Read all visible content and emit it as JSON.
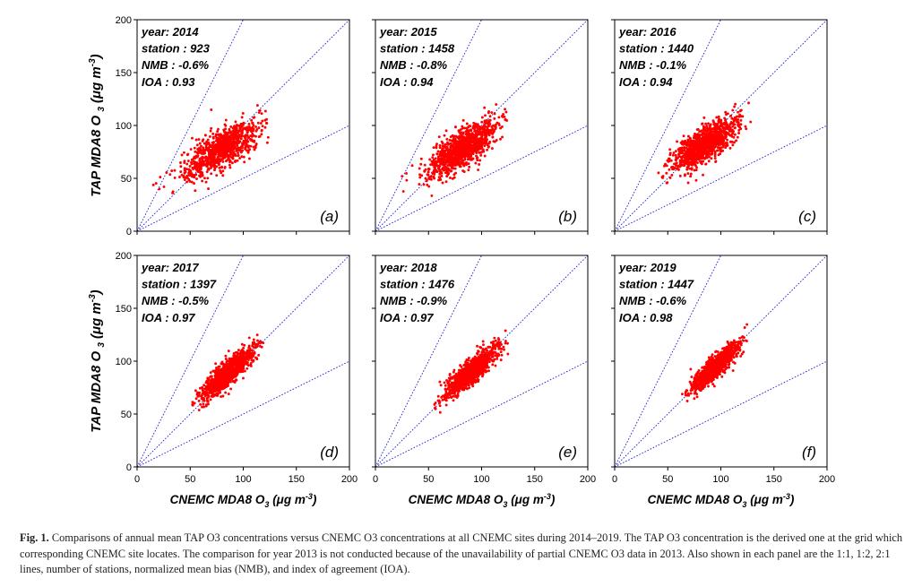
{
  "colors": {
    "points": "#ff0000",
    "ref_lines": "#1a1adc",
    "axes": "#000000"
  },
  "axis_text": {
    "ylabel_main": "TAP MDA8 O",
    "ylabel_sub": "3",
    "ylabel_unit": "(μg m",
    "ylabel_exp": "-3",
    "ylabel_close": ")",
    "xlabel_main": "CNEMC MDA8 O",
    "xlabel_sub": "3",
    "xlabel_unit": "(μg m",
    "xlabel_exp": "-3",
    "xlabel_close": ")"
  },
  "chart_data": [
    {
      "type": "scatter",
      "panel": "(a)",
      "year_text": "year: 2014",
      "station_text": "station : 923",
      "nmb_text": "NMB : -0.6%",
      "ioa_text": "IOA : 0.93",
      "xlim": [
        0,
        200
      ],
      "ylim": [
        0,
        200
      ],
      "xticks": [
        0,
        50,
        100,
        150,
        200
      ],
      "yticks": [
        0,
        50,
        100,
        150,
        200
      ],
      "reference_lines": [
        "1:1",
        "1:2",
        "2:1"
      ],
      "cloud": {
        "x_range": [
          15,
          125
        ],
        "center": [
          80,
          78
        ],
        "slope": 0.58,
        "spread": 9,
        "n": 923
      }
    },
    {
      "type": "scatter",
      "panel": "(b)",
      "year_text": "year: 2015",
      "station_text": "station : 1458",
      "nmb_text": "NMB : -0.8%",
      "ioa_text": "IOA : 0.94",
      "xlim": [
        0,
        200
      ],
      "ylim": [
        0,
        200
      ],
      "xticks": [
        0,
        50,
        100,
        150,
        200
      ],
      "yticks": [
        0,
        50,
        100,
        150,
        200
      ],
      "reference_lines": [
        "1:1",
        "1:2",
        "2:1"
      ],
      "cloud": {
        "x_range": [
          25,
          125
        ],
        "center": [
          82,
          78
        ],
        "slope": 0.6,
        "spread": 9,
        "n": 1458
      }
    },
    {
      "type": "scatter",
      "panel": "(c)",
      "year_text": "year: 2016",
      "station_text": "station : 1440",
      "nmb_text": "NMB : -0.1%",
      "ioa_text": "IOA : 0.94",
      "xlim": [
        0,
        200
      ],
      "ylim": [
        0,
        200
      ],
      "xticks": [
        0,
        50,
        100,
        150,
        200
      ],
      "yticks": [
        0,
        50,
        100,
        150,
        200
      ],
      "reference_lines": [
        "1:1",
        "1:2",
        "2:1"
      ],
      "cloud": {
        "x_range": [
          35,
          130
        ],
        "center": [
          85,
          82
        ],
        "slope": 0.62,
        "spread": 8,
        "n": 1440
      }
    },
    {
      "type": "scatter",
      "panel": "(d)",
      "year_text": "year: 2017",
      "station_text": "station : 1397",
      "nmb_text": "NMB : -0.5%",
      "ioa_text": "IOA : 0.97",
      "xlim": [
        0,
        200
      ],
      "ylim": [
        0,
        200
      ],
      "xticks": [
        0,
        50,
        100,
        150,
        200
      ],
      "yticks": [
        0,
        50,
        100,
        150,
        200
      ],
      "reference_lines": [
        "1:1",
        "1:2",
        "2:1"
      ],
      "cloud": {
        "x_range": [
          50,
          125
        ],
        "center": [
          85,
          88
        ],
        "slope": 0.85,
        "spread": 6,
        "n": 1397
      }
    },
    {
      "type": "scatter",
      "panel": "(e)",
      "year_text": "year: 2018",
      "station_text": "station : 1476",
      "nmb_text": "NMB : -0.9%",
      "ioa_text": "IOA : 0.97",
      "xlim": [
        0,
        200
      ],
      "ylim": [
        0,
        200
      ],
      "xticks": [
        0,
        50,
        100,
        150,
        200
      ],
      "yticks": [
        0,
        50,
        100,
        150,
        200
      ],
      "reference_lines": [
        "1:1",
        "1:2",
        "2:1"
      ],
      "cloud": {
        "x_range": [
          52,
          125
        ],
        "center": [
          90,
          90
        ],
        "slope": 0.85,
        "spread": 6,
        "n": 1476
      }
    },
    {
      "type": "scatter",
      "panel": "(f)",
      "year_text": "year: 2019",
      "station_text": "station : 1447",
      "nmb_text": "NMB : -0.6%",
      "ioa_text": "IOA : 0.98",
      "xlim": [
        0,
        200
      ],
      "ylim": [
        0,
        200
      ],
      "xticks": [
        0,
        50,
        100,
        150,
        200
      ],
      "yticks": [
        0,
        50,
        100,
        150,
        200
      ],
      "reference_lines": [
        "1:1",
        "1:2",
        "2:1"
      ],
      "cloud": {
        "x_range": [
          60,
          125
        ],
        "center": [
          95,
          95
        ],
        "slope": 0.88,
        "spread": 5,
        "n": 1447
      }
    }
  ],
  "caption": {
    "label": "Fig. 1.",
    "text": "Comparisons of annual mean TAP O3 concentrations versus CNEMC O3 concentrations at all CNEMC sites during 2014–2019. The TAP O3 concentration is the derived one at the grid which corresponding CNEMC site locates. The comparison for year 2013 is not conducted because of the unavailability of partial CNEMC O3 data in 2013. Also shown in each panel are the 1:1, 1:2, 2:1 lines, number of stations, normalized mean bias (NMB), and index of agreement (IOA)."
  }
}
